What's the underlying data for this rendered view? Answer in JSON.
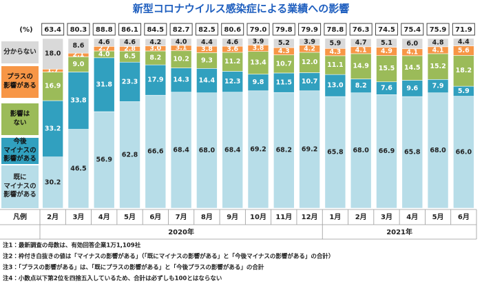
{
  "chart_data": {
    "type": "stacked-bar",
    "title": "新型コロナウイルス感染症による業績への影響",
    "unit_label": "(%)",
    "legend_label": "凡例",
    "categories": [
      "2月",
      "3月",
      "4月",
      "5月",
      "6月",
      "7月",
      "8月",
      "9月",
      "10月",
      "11月",
      "12月",
      "1月",
      "2月",
      "3月",
      "4月",
      "5月",
      "6月"
    ],
    "years": [
      "2020年",
      "2021年"
    ],
    "ylim": [
      0,
      100
    ],
    "series": [
      {
        "name": "既に\nマイナスの\n影響がある",
        "color": "#b7dde8",
        "values": [
          30.2,
          46.5,
          56.9,
          62.8,
          66.6,
          68.4,
          68.0,
          68.4,
          69.2,
          68.2,
          69.2,
          65.8,
          68.0,
          66.9,
          65.8,
          68.0,
          66.0
        ],
        "value_labels": [
          "30.2",
          "46.5",
          "56.9",
          "62.8",
          "66.6",
          "68.4",
          "68.0",
          "68.4",
          "69.2",
          "68.2",
          "69.2",
          "65.8",
          "68.0",
          "66.9",
          "65.8",
          "68.0",
          "66.0"
        ]
      },
      {
        "name": "今後\nマイナスの\n影響がある",
        "color": "#31a0bf",
        "values": [
          33.2,
          33.8,
          31.8,
          23.3,
          17.9,
          14.3,
          14.4,
          12.3,
          9.8,
          11.5,
          10.7,
          13.0,
          8.2,
          7.6,
          9.6,
          7.9,
          5.9
        ],
        "value_labels": [
          "33.2",
          "33.8",
          "31.8",
          "23.3",
          "17.9",
          "14.3",
          "14.4",
          "12.3",
          "9.8",
          "11.5",
          "10.7",
          "13.0",
          "8.2",
          "7.6",
          "9.6",
          "7.9",
          "5.9"
        ]
      },
      {
        "name": "影響は\nない",
        "color": "#9bbb59",
        "values": [
          16.9,
          9.0,
          4.0,
          6.5,
          8.2,
          10.2,
          9.3,
          11.2,
          13.4,
          10.7,
          12.0,
          11.1,
          14.9,
          15.5,
          14.5,
          15.2,
          18.2
        ],
        "value_labels": [
          "16.9",
          "9.0",
          "4.0",
          "6.5",
          "8.2",
          "10.2",
          "9.3",
          "11.2",
          "13.4",
          "10.7",
          "12.0",
          "11.1",
          "14.9",
          "15.5",
          "14.5",
          "15.2",
          "18.2"
        ]
      },
      {
        "name": "プラスの\n影響がある",
        "color": "#f79646",
        "values": [
          1.7,
          2.1,
          2.7,
          2.8,
          3.0,
          3.1,
          3.8,
          3.6,
          3.8,
          4.3,
          4.2,
          4.3,
          4.1,
          4.9,
          4.1,
          4.1,
          5.6
        ],
        "value_labels": [
          "1.7",
          "2.1",
          "2.7",
          "2.8",
          "3.0",
          "3.1",
          "3.8",
          "3.6",
          "3.8",
          "4.3",
          "4.2",
          "4.3",
          "4.1",
          "4.9",
          "4.1",
          "4.1",
          "5.6"
        ]
      },
      {
        "name": "分からない",
        "color": "#d9d9d9",
        "values": [
          18.0,
          8.6,
          4.6,
          4.6,
          4.2,
          4.0,
          4.4,
          4.6,
          3.9,
          5.2,
          3.9,
          5.9,
          4.7,
          5.1,
          6.0,
          4.8,
          4.4
        ],
        "value_labels": [
          "18.0",
          "8.6",
          "4.6",
          "4.6",
          "4.2",
          "4.0",
          "4.4",
          "4.6",
          "3.9",
          "5.2",
          "3.9",
          "5.9",
          "4.7",
          "5.1",
          "6.0",
          "4.8",
          "4.4"
        ]
      }
    ],
    "minus_totals": {
      "values": [
        63.4,
        80.3,
        88.8,
        86.1,
        84.5,
        82.7,
        82.5,
        80.6,
        79.0,
        79.8,
        79.9,
        78.8,
        76.3,
        74.5,
        75.4,
        75.9,
        71.9
      ],
      "value_labels": [
        "63.4",
        "80.3",
        "88.8",
        "86.1",
        "84.5",
        "82.7",
        "82.5",
        "80.6",
        "79.0",
        "79.8",
        "79.9",
        "78.8",
        "76.3",
        "74.5",
        "75.4",
        "75.9",
        "71.9"
      ]
    },
    "notes": [
      "注1：最新調査の母数は、有効回答企業1万1,109社",
      "注2：枠付き白抜きの値は「マイナスの影響がある」（「既にマイナスの影響がある」と「今後マイナスの影響がある」の合計）",
      "注3：「プラスの影響がある」は、「既にプラスの影響がある」と「今後プラスの影響がある」の合計",
      "注4：小数点以下第2位を四捨五入しているため、合計は必ずしも100とはならない"
    ]
  }
}
